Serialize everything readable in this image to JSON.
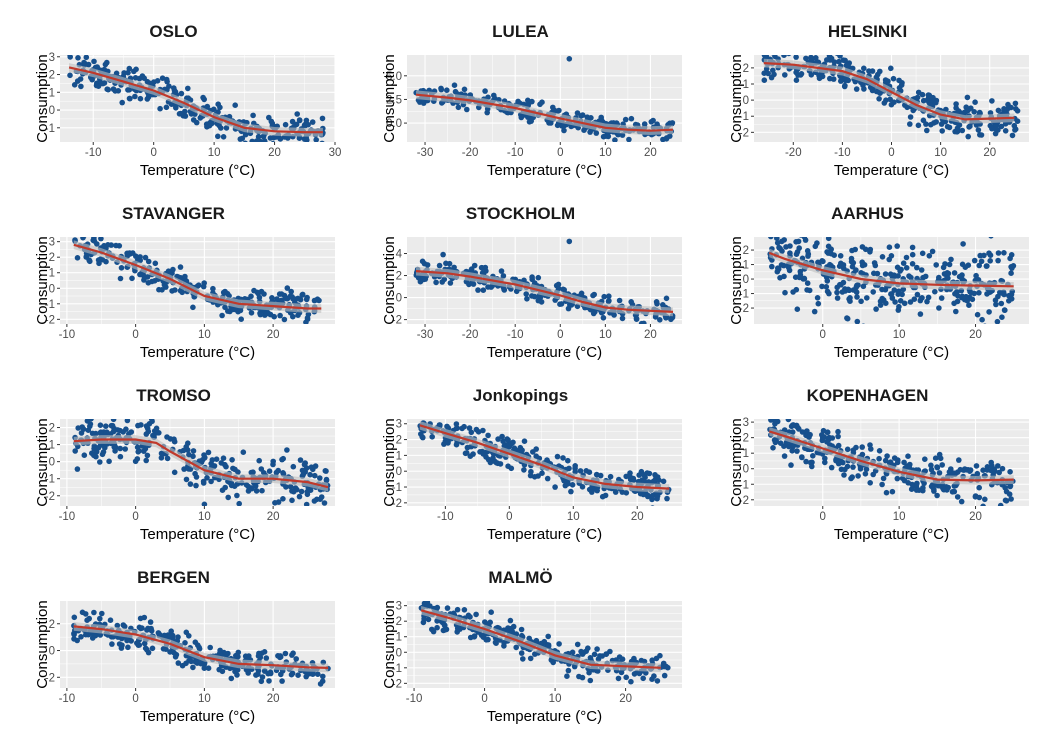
{
  "figure": {
    "colors": {
      "panel_bg": "#ebebeb",
      "grid": "#ffffff",
      "points": "#17508d",
      "smooth": "#c0392b",
      "ribbon": "#bdbdbd",
      "text": "#4d4d4d"
    }
  },
  "chart_data": [
    {
      "type": "scatter",
      "title": "OSLO",
      "xlabel": "Temperature (°C)",
      "ylabel": "Consumption",
      "xlim": [
        -15.5,
        30
      ],
      "ylim": [
        -1.8,
        3.1
      ],
      "xticks": [
        -10,
        0,
        10,
        20,
        30
      ],
      "xtick_labels": [
        "-10",
        "0",
        "10",
        "20",
        "30"
      ],
      "yticks": [
        -1,
        0,
        1,
        2,
        3
      ],
      "ytick_labels": [
        "-1",
        "0",
        "1",
        "2",
        "3"
      ],
      "smooth": {
        "x": [
          -14,
          -10,
          -5,
          0,
          5,
          10,
          15,
          20,
          25,
          28
        ],
        "y": [
          2.4,
          2.1,
          1.6,
          1.1,
          0.4,
          -0.4,
          -1.0,
          -1.2,
          -1.25,
          -1.25
        ]
      },
      "cloud": {
        "x_range": [
          -14,
          28
        ],
        "spread": 0.9,
        "n": 320,
        "outliers": []
      }
    },
    {
      "type": "scatter",
      "title": "LULEA",
      "xlabel": "Temperature (°C)",
      "ylabel": "Consumption",
      "xlim": [
        -34,
        27
      ],
      "ylim": [
        -2.0,
        7.2
      ],
      "xticks": [
        -30,
        -20,
        -10,
        0,
        10,
        20
      ],
      "xtick_labels": [
        "-30",
        "-20",
        "-10",
        "0",
        "10",
        "20"
      ],
      "yticks": [
        0,
        2.5,
        5
      ],
      "ytick_labels": [
        "0.0",
        "2.5",
        "5.0"
      ],
      "smooth": {
        "x": [
          -32,
          -25,
          -20,
          -10,
          0,
          5,
          10,
          15,
          20,
          25
        ],
        "y": [
          3.0,
          2.7,
          2.4,
          1.6,
          0.5,
          0.0,
          -0.5,
          -0.7,
          -0.8,
          -0.7
        ]
      },
      "cloud": {
        "x_range": [
          -32,
          25
        ],
        "spread": 1.0,
        "n": 280,
        "outliers": [
          [
            2,
            6.8
          ]
        ]
      }
    },
    {
      "type": "scatter",
      "title": "HELSINKI",
      "xlabel": "Temperature (°C)",
      "ylabel": "Consumption",
      "xlim": [
        -28,
        28
      ],
      "ylim": [
        -2.6,
        2.8
      ],
      "xticks": [
        -20,
        -10,
        0,
        10,
        20
      ],
      "xtick_labels": [
        "-20",
        "-10",
        "0",
        "10",
        "20"
      ],
      "yticks": [
        -2,
        -1,
        0,
        1,
        2
      ],
      "ytick_labels": [
        "-2",
        "-1",
        "0",
        "1",
        "2"
      ],
      "smooth": {
        "x": [
          -26,
          -20,
          -10,
          -5,
          0,
          5,
          10,
          15,
          20,
          25
        ],
        "y": [
          2.3,
          2.2,
          1.8,
          1.3,
          0.5,
          -0.3,
          -0.9,
          -1.2,
          -1.15,
          -1.1
        ]
      },
      "cloud": {
        "x_range": [
          -26,
          26
        ],
        "spread": 1.1,
        "n": 320,
        "outliers": []
      }
    },
    {
      "type": "scatter",
      "title": "STAVANGER",
      "xlabel": "Temperature (°C)",
      "ylabel": "Consumption",
      "xlim": [
        -11,
        29
      ],
      "ylim": [
        -2.3,
        3.3
      ],
      "xticks": [
        -10,
        0,
        10,
        20
      ],
      "xtick_labels": [
        "-10",
        "0",
        "10",
        "20"
      ],
      "yticks": [
        -2,
        -1,
        0,
        1,
        2,
        3
      ],
      "ytick_labels": [
        "-2",
        "-1",
        "0",
        "1",
        "2",
        "3"
      ],
      "smooth": {
        "x": [
          -9,
          -5,
          0,
          5,
          10,
          15,
          20,
          25,
          27
        ],
        "y": [
          2.8,
          2.3,
          1.5,
          0.6,
          -0.5,
          -1.0,
          -1.15,
          -1.3,
          -1.3
        ]
      },
      "cloud": {
        "x_range": [
          -9,
          27
        ],
        "spread": 0.9,
        "n": 300,
        "outliers": []
      }
    },
    {
      "type": "scatter",
      "title": "STOCKHOLM",
      "xlabel": "Temperature (°C)",
      "ylabel": "Consumption",
      "xlim": [
        -34,
        27
      ],
      "ylim": [
        -2.4,
        5.5
      ],
      "xticks": [
        -30,
        -20,
        -10,
        0,
        10,
        20
      ],
      "xtick_labels": [
        "-30",
        "-20",
        "-10",
        "0",
        "10",
        "20"
      ],
      "yticks": [
        -2,
        0,
        2,
        4
      ],
      "ytick_labels": [
        "-2",
        "0",
        "2",
        "4"
      ],
      "smooth": {
        "x": [
          -32,
          -25,
          -20,
          -10,
          0,
          5,
          10,
          15,
          20,
          25
        ],
        "y": [
          2.4,
          2.2,
          1.9,
          1.2,
          0.2,
          -0.4,
          -0.9,
          -1.1,
          -1.2,
          -1.3
        ]
      },
      "cloud": {
        "x_range": [
          -32,
          25
        ],
        "spread": 1.0,
        "n": 280,
        "outliers": [
          [
            2,
            5.1
          ],
          [
            -26,
            3.9
          ]
        ]
      }
    },
    {
      "type": "scatter",
      "title": "AARHUS",
      "xlabel": "Temperature (°C)",
      "ylabel": "Consumption",
      "xlim": [
        -9,
        27
      ],
      "ylim": [
        -3.1,
        2.9
      ],
      "xticks": [
        0,
        10,
        20
      ],
      "xtick_labels": [
        "0",
        "10",
        "20"
      ],
      "yticks": [
        -2,
        -1,
        0,
        1,
        2
      ],
      "ytick_labels": [
        "-2",
        "-1",
        "0",
        "1",
        "2"
      ],
      "smooth": {
        "x": [
          -7,
          -5,
          0,
          5,
          10,
          15,
          20,
          25
        ],
        "y": [
          1.8,
          1.4,
          0.6,
          0.0,
          -0.3,
          -0.4,
          -0.45,
          -0.5
        ]
      },
      "cloud": {
        "x_range": [
          -7,
          25
        ],
        "spread": 2.6,
        "n": 380,
        "outliers": []
      }
    },
    {
      "type": "scatter",
      "title": "TROMSO",
      "xlabel": "Temperature (°C)",
      "ylabel": "Consumption",
      "xlim": [
        -11,
        29
      ],
      "ylim": [
        -2.6,
        2.5
      ],
      "xticks": [
        -10,
        0,
        10,
        20
      ],
      "xtick_labels": [
        "-10",
        "0",
        "10",
        "20"
      ],
      "yticks": [
        -2,
        -1,
        0,
        1,
        2
      ],
      "ytick_labels": [
        "-2",
        "-1",
        "0",
        "1",
        "2"
      ],
      "smooth": {
        "x": [
          -9,
          -5,
          0,
          3,
          5,
          10,
          15,
          20,
          25,
          28
        ],
        "y": [
          1.2,
          1.3,
          1.3,
          1.1,
          0.6,
          -0.5,
          -1.0,
          -1.0,
          -1.2,
          -1.5
        ]
      },
      "cloud": {
        "x_range": [
          -9,
          28
        ],
        "spread": 1.3,
        "n": 320,
        "outliers": [
          [
            10,
            -2.5
          ]
        ]
      }
    },
    {
      "type": "scatter",
      "title": "Jonkopings",
      "xlabel": "Temperature (°C)",
      "ylabel": "Consumption",
      "xlim": [
        -16,
        27
      ],
      "ylim": [
        -2.2,
        3.3
      ],
      "xticks": [
        -10,
        0,
        10,
        20
      ],
      "xtick_labels": [
        "-10",
        "0",
        "10",
        "20"
      ],
      "yticks": [
        -2,
        -1,
        0,
        1,
        2,
        3
      ],
      "ytick_labels": [
        "-2",
        "-1",
        "0",
        "1",
        "2",
        "3"
      ],
      "smooth": {
        "x": [
          -14,
          -10,
          -5,
          0,
          5,
          10,
          15,
          20,
          25
        ],
        "y": [
          2.9,
          2.4,
          1.8,
          1.1,
          0.4,
          -0.4,
          -0.8,
          -1.0,
          -1.1
        ]
      },
      "cloud": {
        "x_range": [
          -14,
          25
        ],
        "spread": 1.0,
        "n": 300,
        "outliers": []
      }
    },
    {
      "type": "scatter",
      "title": "KOPENHAGEN",
      "xlabel": "Temperature (°C)",
      "ylabel": "Consumption",
      "xlim": [
        -9,
        27
      ],
      "ylim": [
        -2.4,
        3.2
      ],
      "xticks": [
        0,
        10,
        20
      ],
      "xtick_labels": [
        "0",
        "10",
        "20"
      ],
      "yticks": [
        -2,
        -1,
        0,
        1,
        2,
        3
      ],
      "ytick_labels": [
        "-2",
        "-1",
        "0",
        "1",
        "2",
        "3"
      ],
      "smooth": {
        "x": [
          -7,
          -5,
          0,
          5,
          10,
          15,
          20,
          25
        ],
        "y": [
          2.4,
          2.1,
          1.3,
          0.5,
          -0.2,
          -0.7,
          -0.75,
          -0.7
        ]
      },
      "cloud": {
        "x_range": [
          -7,
          25
        ],
        "spread": 1.3,
        "n": 320,
        "outliers": []
      }
    },
    {
      "type": "scatter",
      "title": "BERGEN",
      "xlabel": "Temperature (°C)",
      "ylabel": "Consumption",
      "xlim": [
        -11,
        29
      ],
      "ylim": [
        -2.8,
        3.7
      ],
      "xticks": [
        -10,
        0,
        10,
        20
      ],
      "xtick_labels": [
        "-10",
        "0",
        "10",
        "20"
      ],
      "yticks": [
        -2,
        0,
        2
      ],
      "ytick_labels": [
        "-2",
        "0",
        "2"
      ],
      "smooth": {
        "x": [
          -9,
          -5,
          0,
          5,
          10,
          15,
          20,
          25,
          28
        ],
        "y": [
          1.8,
          1.6,
          1.2,
          0.5,
          -0.5,
          -1.0,
          -1.1,
          -1.25,
          -1.3
        ]
      },
      "cloud": {
        "x_range": [
          -9,
          28
        ],
        "spread": 1.1,
        "n": 300,
        "outliers": []
      }
    },
    {
      "type": "scatter",
      "title": "MALMÖ",
      "xlabel": "Temperature (°C)",
      "ylabel": "Consumption",
      "xlim": [
        -11,
        28
      ],
      "ylim": [
        -2.3,
        3.3
      ],
      "xticks": [
        -10,
        0,
        10,
        20
      ],
      "xtick_labels": [
        "-10",
        "0",
        "10",
        "20"
      ],
      "yticks": [
        -2,
        -1,
        0,
        1,
        2,
        3
      ],
      "ytick_labels": [
        "-2",
        "-1",
        "0",
        "1",
        "2",
        "3"
      ],
      "smooth": {
        "x": [
          -9,
          -5,
          0,
          5,
          10,
          15,
          20,
          25
        ],
        "y": [
          2.7,
          2.2,
          1.5,
          0.7,
          -0.2,
          -0.8,
          -0.9,
          -1.0
        ]
      },
      "cloud": {
        "x_range": [
          -9,
          26
        ],
        "spread": 0.9,
        "n": 300,
        "outliers": []
      }
    }
  ]
}
